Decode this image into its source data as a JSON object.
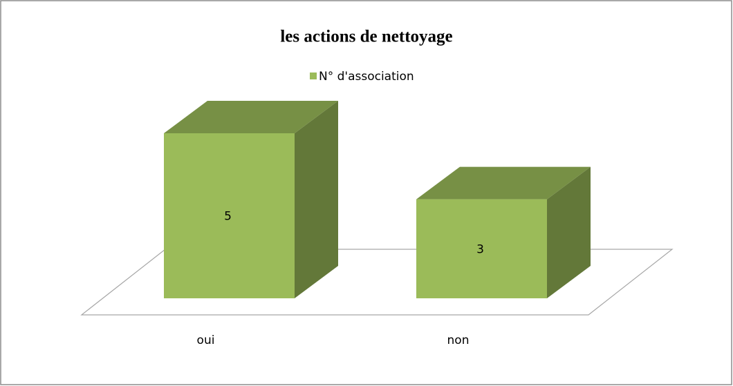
{
  "chart_data": {
    "type": "bar3d",
    "title": "les actions de nettoyage",
    "categories": [
      "oui",
      "non"
    ],
    "series": [
      {
        "name": "N° d'association",
        "color": "#9bbb59",
        "values": [
          5,
          3
        ]
      }
    ]
  }
}
